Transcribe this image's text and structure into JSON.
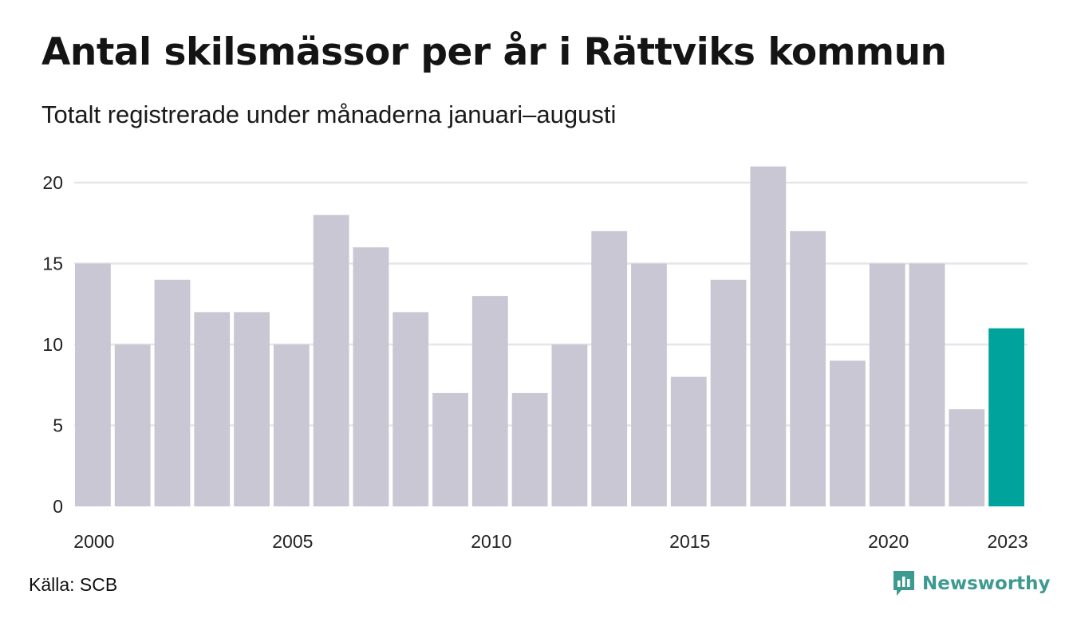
{
  "header": {
    "title": "Antal skilsmässor per år i Rättviks kommun",
    "subtitle": "Totalt registrerade under månaderna januari–augusti"
  },
  "footer": {
    "source": "Källa: SCB",
    "brand": "Newsworthy",
    "brand_icon": "newsworthy-logo-icon"
  },
  "colors": {
    "bar": "#c8c7d3",
    "highlight": "#00a39b",
    "grid": "#e6e6ea",
    "brand": "#3d9a91"
  },
  "chart_data": {
    "type": "bar",
    "categories": [
      2000,
      2001,
      2002,
      2003,
      2004,
      2005,
      2006,
      2007,
      2008,
      2009,
      2010,
      2011,
      2012,
      2013,
      2014,
      2015,
      2016,
      2017,
      2018,
      2019,
      2020,
      2021,
      2022,
      2023
    ],
    "values": [
      15,
      10,
      14,
      12,
      12,
      10,
      18,
      16,
      12,
      7,
      13,
      7,
      10,
      17,
      15,
      8,
      14,
      21,
      17,
      9,
      15,
      15,
      6,
      11
    ],
    "highlight_category": 2023,
    "xticks": [
      2000,
      2005,
      2010,
      2015,
      2020,
      2023
    ],
    "yticks": [
      0,
      5,
      10,
      15,
      20
    ],
    "ylim": [
      0,
      21
    ],
    "grid": true,
    "legend": false,
    "title": "Antal skilsmässor per år i Rättviks kommun",
    "subtitle": "Totalt registrerade under månaderna januari–augusti",
    "xlabel": "",
    "ylabel": ""
  }
}
